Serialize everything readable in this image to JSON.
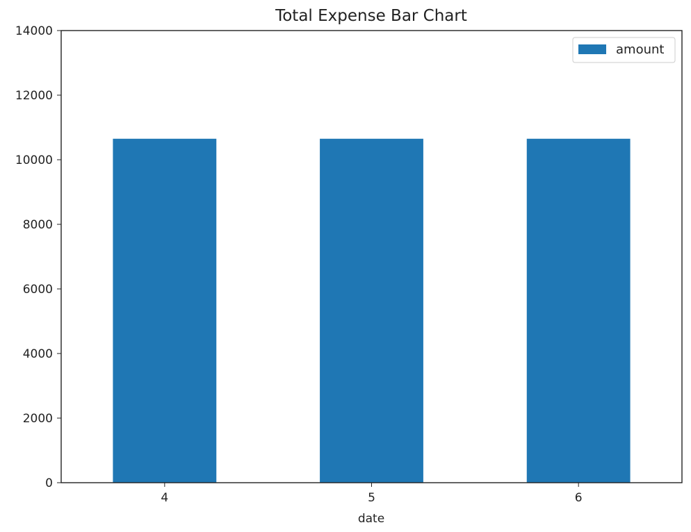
{
  "chart_data": {
    "type": "bar",
    "title": "Total Expense Bar Chart",
    "xlabel": "date",
    "ylabel": "",
    "categories": [
      "4",
      "5",
      "6"
    ],
    "series": [
      {
        "name": "amount",
        "values": [
          10650,
          10650,
          10650
        ],
        "color": "#1f77b4"
      }
    ],
    "ylim": [
      0,
      14000
    ],
    "yticks": [
      0,
      2000,
      4000,
      6000,
      8000,
      10000,
      12000,
      14000
    ],
    "ytick_labels": [
      "0",
      "2000",
      "4000",
      "6000",
      "8000",
      "10000",
      "12000",
      "14000"
    ],
    "grid": false,
    "legend_position": "top-right"
  }
}
